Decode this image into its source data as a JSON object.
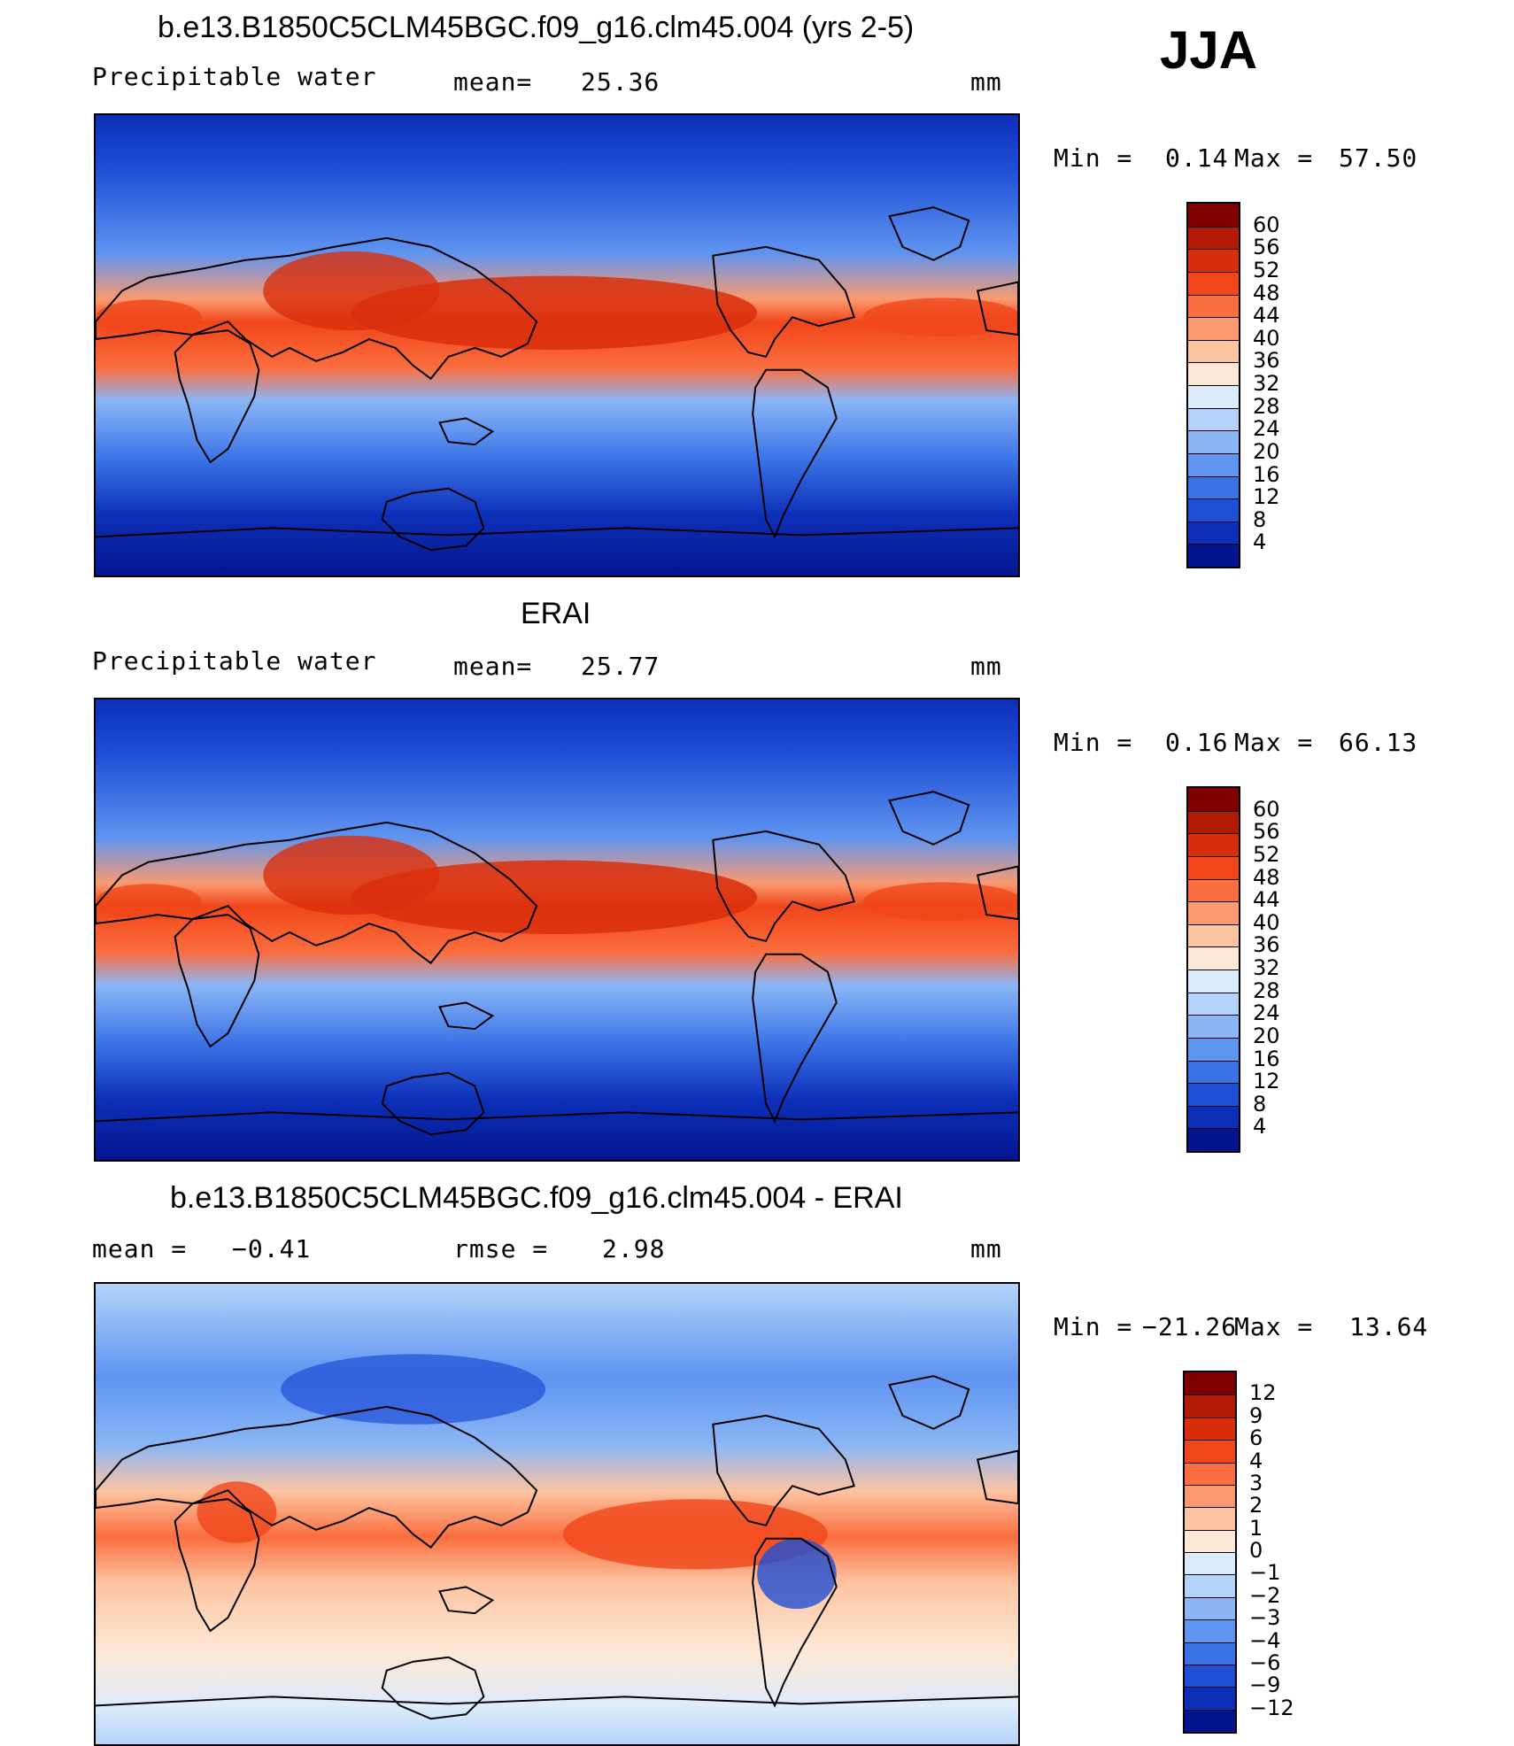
{
  "season": "JJA",
  "units": "mm",
  "panels": [
    {
      "title": "b.e13.B1850C5CLM45BGC.f09_g16.clm45.004 (yrs 2-5)",
      "variable": "Precipitable water",
      "stat_label": "mean=",
      "stat_value": "25.36",
      "min_label": "Min =",
      "min_value": "0.14",
      "max_label": "Max =",
      "max_value": "57.50"
    },
    {
      "title": "ERAI",
      "variable": "Precipitable water",
      "stat_label": "mean=",
      "stat_value": "25.77",
      "min_label": "Min =",
      "min_value": "0.16",
      "max_label": "Max =",
      "max_value": "66.13"
    },
    {
      "title": "b.e13.B1850C5CLM45BGC.f09_g16.clm45.004 - ERAI",
      "mean_label": "mean =",
      "mean_value": "−0.41",
      "rmse_label": "rmse =",
      "rmse_value": "2.98",
      "min_label": "Min =",
      "min_value": "−21.26",
      "max_label": "Max =",
      "max_value": "13.64"
    }
  ],
  "colorbars": {
    "absolute": {
      "labels": [
        "60",
        "56",
        "52",
        "48",
        "44",
        "40",
        "36",
        "32",
        "28",
        "24",
        "20",
        "16",
        "12",
        "8",
        "4"
      ],
      "colors": [
        "#7f0000",
        "#b21a06",
        "#d92e0c",
        "#f0461a",
        "#fa6e3f",
        "#fb9a70",
        "#fcc4a1",
        "#fde8d6",
        "#dcebfb",
        "#b4d3fa",
        "#8ab6f6",
        "#5f94f0",
        "#3a72e6",
        "#1f4fd6",
        "#0d2fb8",
        "#04168f"
      ]
    },
    "difference": {
      "labels": [
        "12",
        "9",
        "6",
        "4",
        "3",
        "2",
        "1",
        "0",
        "−1",
        "−2",
        "−3",
        "−4",
        "−6",
        "−9",
        "−12"
      ],
      "colors": [
        "#7f0000",
        "#b21a06",
        "#d92e0c",
        "#f0461a",
        "#fa6e3f",
        "#fb9a70",
        "#fcc4a1",
        "#fde8d6",
        "#dcebfb",
        "#b4d3fa",
        "#8ab6f6",
        "#5f94f0",
        "#3a72e6",
        "#1f4fd6",
        "#0d2fb8",
        "#04168f"
      ]
    }
  }
}
